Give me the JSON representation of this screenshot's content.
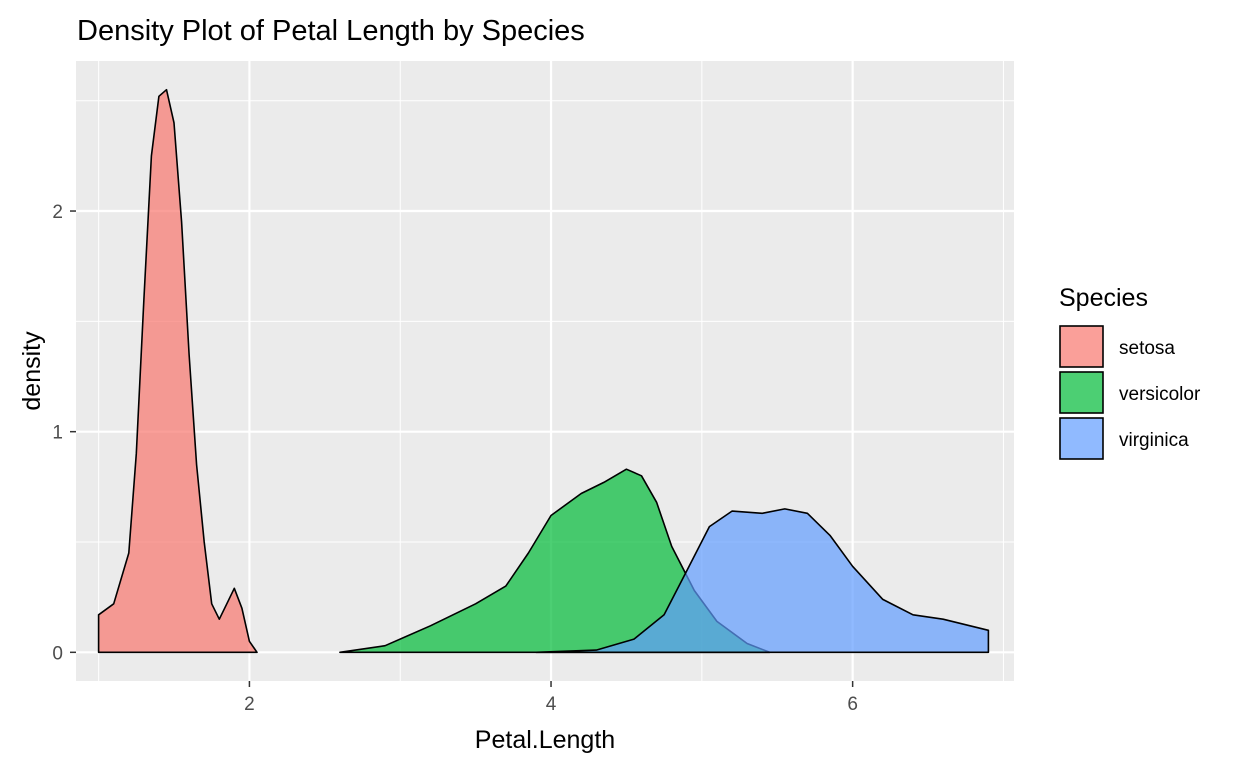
{
  "chart_data": {
    "type": "area",
    "subtype": "density",
    "title": "Density Plot of Petal Length by Species",
    "xlabel": "Petal.Length",
    "ylabel": "density",
    "xlim": [
      0.85,
      7.07
    ],
    "ylim": [
      -0.13,
      2.68
    ],
    "x_ticks": [
      2,
      4,
      6
    ],
    "x_tick_labels": [
      "2",
      "4",
      "6"
    ],
    "y_ticks": [
      0,
      1,
      2
    ],
    "y_tick_labels": [
      "0",
      "1",
      "2"
    ],
    "grid": true,
    "legend": {
      "title": "Species",
      "position": "right"
    },
    "panel_background": "#EBEBEB",
    "grid_color": "#FFFFFF",
    "outline_color": "#000000",
    "fill_opacity": 0.7,
    "series": [
      {
        "name": "setosa",
        "color": "#F8766D",
        "points": [
          [
            1.0,
            0.17
          ],
          [
            1.1,
            0.22
          ],
          [
            1.2,
            0.45
          ],
          [
            1.25,
            0.9
          ],
          [
            1.3,
            1.6
          ],
          [
            1.35,
            2.25
          ],
          [
            1.4,
            2.52
          ],
          [
            1.45,
            2.55
          ],
          [
            1.5,
            2.4
          ],
          [
            1.55,
            1.95
          ],
          [
            1.6,
            1.35
          ],
          [
            1.65,
            0.85
          ],
          [
            1.7,
            0.5
          ],
          [
            1.75,
            0.22
          ],
          [
            1.8,
            0.15
          ],
          [
            1.85,
            0.22
          ],
          [
            1.9,
            0.29
          ],
          [
            1.95,
            0.2
          ],
          [
            2.0,
            0.05
          ],
          [
            2.05,
            0.0
          ]
        ]
      },
      {
        "name": "versicolor",
        "color": "#00BA38",
        "points": [
          [
            2.6,
            0.0
          ],
          [
            2.9,
            0.03
          ],
          [
            3.2,
            0.12
          ],
          [
            3.5,
            0.22
          ],
          [
            3.7,
            0.3
          ],
          [
            3.85,
            0.45
          ],
          [
            4.0,
            0.62
          ],
          [
            4.2,
            0.72
          ],
          [
            4.35,
            0.77
          ],
          [
            4.5,
            0.83
          ],
          [
            4.6,
            0.8
          ],
          [
            4.7,
            0.68
          ],
          [
            4.8,
            0.48
          ],
          [
            4.95,
            0.28
          ],
          [
            5.1,
            0.14
          ],
          [
            5.3,
            0.04
          ],
          [
            5.45,
            0.0
          ]
        ]
      },
      {
        "name": "virginica",
        "color": "#619CFF",
        "points": [
          [
            3.9,
            0.0
          ],
          [
            4.3,
            0.01
          ],
          [
            4.55,
            0.06
          ],
          [
            4.75,
            0.17
          ],
          [
            4.9,
            0.37
          ],
          [
            5.05,
            0.57
          ],
          [
            5.2,
            0.64
          ],
          [
            5.4,
            0.63
          ],
          [
            5.55,
            0.65
          ],
          [
            5.7,
            0.63
          ],
          [
            5.85,
            0.53
          ],
          [
            6.0,
            0.39
          ],
          [
            6.2,
            0.24
          ],
          [
            6.4,
            0.17
          ],
          [
            6.6,
            0.15
          ],
          [
            6.9,
            0.1
          ]
        ]
      }
    ]
  }
}
